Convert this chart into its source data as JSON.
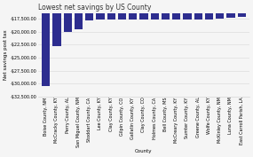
{
  "title": "Lowest net savings by US County",
  "xlabel": "County",
  "ylabel": "Net savings post tax",
  "bar_color": "#2d2d8f",
  "background_color": "#f5f5f5",
  "counties": [
    "Boise County, NM",
    "McCracky County, KY",
    "Perry County, AL",
    "San Miguel County, NM",
    "Stoddart County, CA",
    "Lee County, KY",
    "Clay County, KY",
    "Gilpin County, CO",
    "Gallatin County, KY",
    "Clay County, CO",
    "Holmes County, CA",
    "Bell County, MS",
    "McCreary County, KY",
    "Sumter County, KY",
    "Greene County, AL",
    "Wolfe County, KY",
    "McKinley County, NM",
    "Luna County, NM",
    "East Carroll Parish, LA"
  ],
  "values": [
    -30500,
    -22800,
    -20100,
    -19600,
    -17800,
    -17700,
    -17700,
    -17700,
    -17600,
    -17600,
    -17600,
    -17600,
    -17600,
    -17600,
    -17600,
    -17600,
    -17500,
    -17300,
    -17100
  ],
  "ylim": [
    -32000,
    -16500
  ],
  "yticks": [
    -17500,
    -20000,
    -22500,
    -25000,
    -27500,
    -30000,
    -32500
  ],
  "title_fontsize": 5.5,
  "axis_label_fontsize": 4.0,
  "tick_fontsize": 3.5
}
